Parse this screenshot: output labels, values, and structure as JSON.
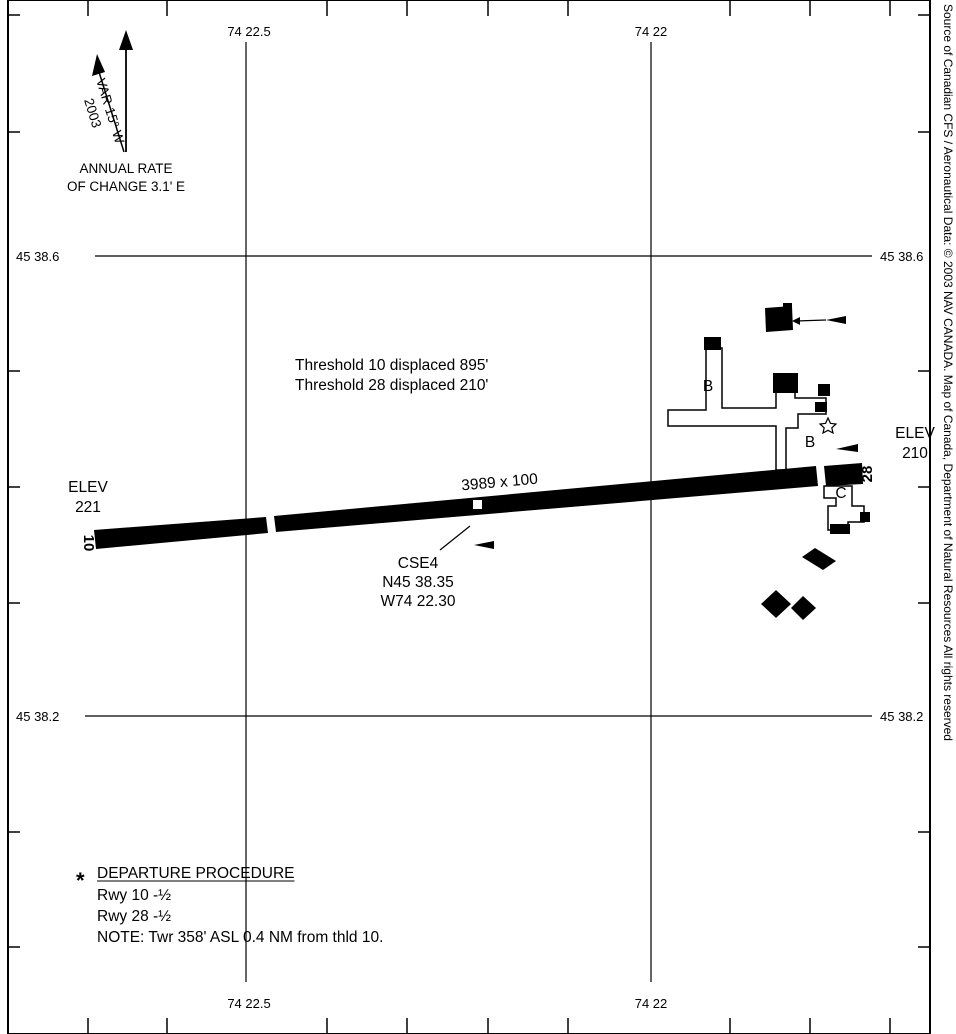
{
  "grid": {
    "lon_left": "74 22.5",
    "lon_right": "74 22",
    "lat_top": "45 38.6",
    "lat_bottom": "45 38.2"
  },
  "north_arrow": {
    "variation": "VAR 15° W",
    "year": "2003",
    "annual_rate_line1": "ANNUAL RATE",
    "annual_rate_line2": "OF CHANGE 3.1' E"
  },
  "runway": {
    "dimensions": "3989 x 100",
    "end_west": "10",
    "end_east": "28",
    "elev_west_label": "ELEV",
    "elev_west_value": "221",
    "elev_east_label": "ELEV",
    "elev_east_value": "210"
  },
  "thresholds": {
    "line1": "Threshold 10 displaced 895'",
    "line2": "Threshold 28 displaced 210'"
  },
  "checkpoint": {
    "id": "CSE4",
    "lat": "N45 38.35",
    "lon": "W74 22.30"
  },
  "taxiways": {
    "b_left": "B",
    "b_right": "B",
    "c": "C"
  },
  "departure": {
    "marker": "*",
    "title": "DEPARTURE PROCEDURE",
    "rwy10": "Rwy 10 -½",
    "rwy28": "Rwy 28 -½",
    "note": "NOTE: Twr 358' ASL 0.4 NM from thld 10."
  },
  "copyright": "Source of Canadian CFS / Aeronautical Data: © 2003 NAV CANADA. Map of Canada, Department of Natural Resources All rights reserved"
}
